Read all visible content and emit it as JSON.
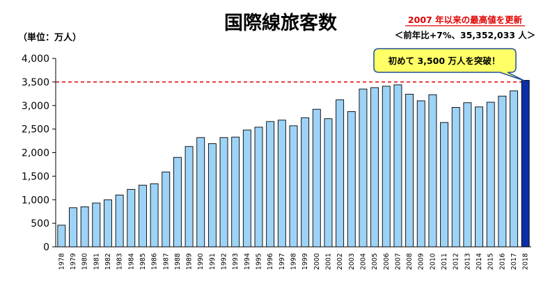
{
  "chart_data": {
    "type": "bar",
    "title": "国際線旅客数",
    "unit_label": "（単位：万人）",
    "annotation_line1": "2007 年以来の最高値を更新",
    "annotation_line2": "＜前年比+7%、35,352,033 人＞",
    "callout": "初めて 3,500 万人を突破！",
    "ylim": [
      0,
      4000
    ],
    "yticks": [
      0,
      500,
      1000,
      1500,
      2000,
      2500,
      3000,
      3500,
      4000
    ],
    "ytick_labels": [
      "0",
      "500",
      "1,000",
      "1,500",
      "2,000",
      "2,500",
      "3,000",
      "3,500",
      "4,000"
    ],
    "reference_line": 3500,
    "categories": [
      "1978",
      "1979",
      "1980",
      "1981",
      "1982",
      "1983",
      "1984",
      "1985",
      "1986",
      "1987",
      "1988",
      "1989",
      "1990",
      "1991",
      "1992",
      "1993",
      "1994",
      "1995",
      "1996",
      "1997",
      "1998",
      "1999",
      "2000",
      "2001",
      "2002",
      "2003",
      "2004",
      "2005",
      "2006",
      "2007",
      "2008",
      "2009",
      "2010",
      "2011",
      "2012",
      "2013",
      "2014",
      "2015",
      "2016",
      "2017",
      "2018"
    ],
    "values": [
      460,
      830,
      850,
      930,
      1000,
      1100,
      1220,
      1310,
      1340,
      1590,
      1900,
      2130,
      2320,
      2190,
      2320,
      2330,
      2480,
      2540,
      2660,
      2690,
      2570,
      2740,
      2920,
      2720,
      3120,
      2870,
      3350,
      3380,
      3410,
      3440,
      3240,
      3100,
      3230,
      2640,
      2960,
      3060,
      2970,
      3070,
      3200,
      3310,
      3535
    ],
    "highlight_category": "2018",
    "colors": {
      "bar": "#9dd3f7",
      "bar_stroke": "#000000",
      "highlight_bar": "#0a2fa8",
      "reference_line": "#e00000",
      "callout_fill": "#ffff66",
      "callout_stroke": "#1f4e9c"
    },
    "grid": false
  }
}
